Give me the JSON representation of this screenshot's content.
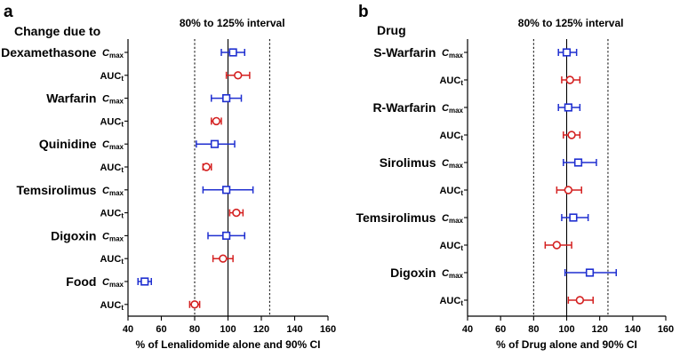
{
  "chart_data": [
    {
      "type": "forest",
      "panel_label": "a",
      "header_label": "Change due to",
      "interval_label": "80% to 125% interval",
      "xlabel": "% of Lenalidomide alone and 90% CI",
      "xlim": [
        40,
        160
      ],
      "xticks": [
        40,
        60,
        80,
        100,
        120,
        140,
        160
      ],
      "reference_lines": [
        80,
        100,
        125
      ],
      "rows": [
        {
          "drug": "Dexamethasone",
          "param": "Cmax",
          "param_main": "C",
          "param_sub": "max",
          "est": 103,
          "lo": 96,
          "hi": 110,
          "series": "Cmax"
        },
        {
          "drug": "",
          "param": "AUCt",
          "param_main": "AUC",
          "param_sub": "t",
          "est": 106,
          "lo": 99,
          "hi": 113,
          "series": "AUCt"
        },
        {
          "drug": "Warfarin",
          "param": "Cmax",
          "param_main": "C",
          "param_sub": "max",
          "est": 99,
          "lo": 90,
          "hi": 108,
          "series": "Cmax"
        },
        {
          "drug": "",
          "param": "AUCt",
          "param_main": "AUC",
          "param_sub": "t",
          "est": 93,
          "lo": 90,
          "hi": 96,
          "series": "AUCt"
        },
        {
          "drug": "Quinidine",
          "param": "Cmax",
          "param_main": "C",
          "param_sub": "max",
          "est": 92,
          "lo": 81,
          "hi": 104,
          "series": "Cmax"
        },
        {
          "drug": "",
          "param": "AUCt",
          "param_main": "AUC",
          "param_sub": "t",
          "est": 87,
          "lo": 85,
          "hi": 90,
          "series": "AUCt"
        },
        {
          "drug": "Temsirolimus",
          "param": "Cmax",
          "param_main": "C",
          "param_sub": "max",
          "est": 99,
          "lo": 85,
          "hi": 115,
          "series": "Cmax"
        },
        {
          "drug": "",
          "param": "AUCt",
          "param_main": "AUC",
          "param_sub": "t",
          "est": 105,
          "lo": 101,
          "hi": 109,
          "series": "AUCt"
        },
        {
          "drug": "Digoxin",
          "param": "Cmax",
          "param_main": "C",
          "param_sub": "max",
          "est": 99,
          "lo": 88,
          "hi": 110,
          "series": "Cmax"
        },
        {
          "drug": "",
          "param": "AUCt",
          "param_main": "AUC",
          "param_sub": "t",
          "est": 97,
          "lo": 91,
          "hi": 103,
          "series": "AUCt"
        },
        {
          "drug": "Food",
          "param": "Cmax",
          "param_main": "C",
          "param_sub": "max",
          "est": 50,
          "lo": 46,
          "hi": 54,
          "series": "Cmax"
        },
        {
          "drug": "",
          "param": "AUCt",
          "param_main": "AUC",
          "param_sub": "t",
          "est": 80,
          "lo": 77,
          "hi": 83,
          "series": "AUCt"
        }
      ]
    },
    {
      "type": "forest",
      "panel_label": "b",
      "header_label": "Drug",
      "interval_label": "80% to 125% interval",
      "xlabel": "% of Drug alone and 90% CI",
      "xlim": [
        40,
        160
      ],
      "xticks": [
        40,
        60,
        80,
        100,
        120,
        140,
        160
      ],
      "reference_lines": [
        80,
        100,
        125
      ],
      "rows": [
        {
          "drug": "S-Warfarin",
          "param": "Cmax",
          "param_main": "C",
          "param_sub": "max",
          "est": 100,
          "lo": 95,
          "hi": 106,
          "series": "Cmax"
        },
        {
          "drug": "",
          "param": "AUCt",
          "param_main": "AUC",
          "param_sub": "t",
          "est": 102,
          "lo": 97,
          "hi": 108,
          "series": "AUCt"
        },
        {
          "drug": "R-Warfarin",
          "param": "Cmax",
          "param_main": "C",
          "param_sub": "max",
          "est": 101,
          "lo": 95,
          "hi": 108,
          "series": "Cmax"
        },
        {
          "drug": "",
          "param": "AUCt",
          "param_main": "AUC",
          "param_sub": "t",
          "est": 103,
          "lo": 98,
          "hi": 108,
          "series": "AUCt"
        },
        {
          "drug": "Sirolimus",
          "param": "Cmax",
          "param_main": "C",
          "param_sub": "max",
          "est": 107,
          "lo": 98,
          "hi": 118,
          "series": "Cmax"
        },
        {
          "drug": "",
          "param": "AUCt",
          "param_main": "AUC",
          "param_sub": "t",
          "est": 101,
          "lo": 94,
          "hi": 109,
          "series": "AUCt"
        },
        {
          "drug": "Temsirolimus",
          "param": "Cmax",
          "param_main": "C",
          "param_sub": "max",
          "est": 104,
          "lo": 97,
          "hi": 113,
          "series": "Cmax"
        },
        {
          "drug": "",
          "param": "AUCt",
          "param_main": "AUC",
          "param_sub": "t",
          "est": 94,
          "lo": 87,
          "hi": 103,
          "series": "AUCt"
        },
        {
          "drug": "Digoxin",
          "param": "Cmax",
          "param_main": "C",
          "param_sub": "max",
          "est": 114,
          "lo": 99,
          "hi": 130,
          "series": "Cmax"
        },
        {
          "drug": "",
          "param": "AUCt",
          "param_main": "AUC",
          "param_sub": "t",
          "est": 108,
          "lo": 101,
          "hi": 116,
          "series": "AUCt"
        }
      ]
    }
  ],
  "colors": {
    "Cmax": "#1f2fd0",
    "AUCt": "#d42020",
    "axis": "#000000"
  }
}
